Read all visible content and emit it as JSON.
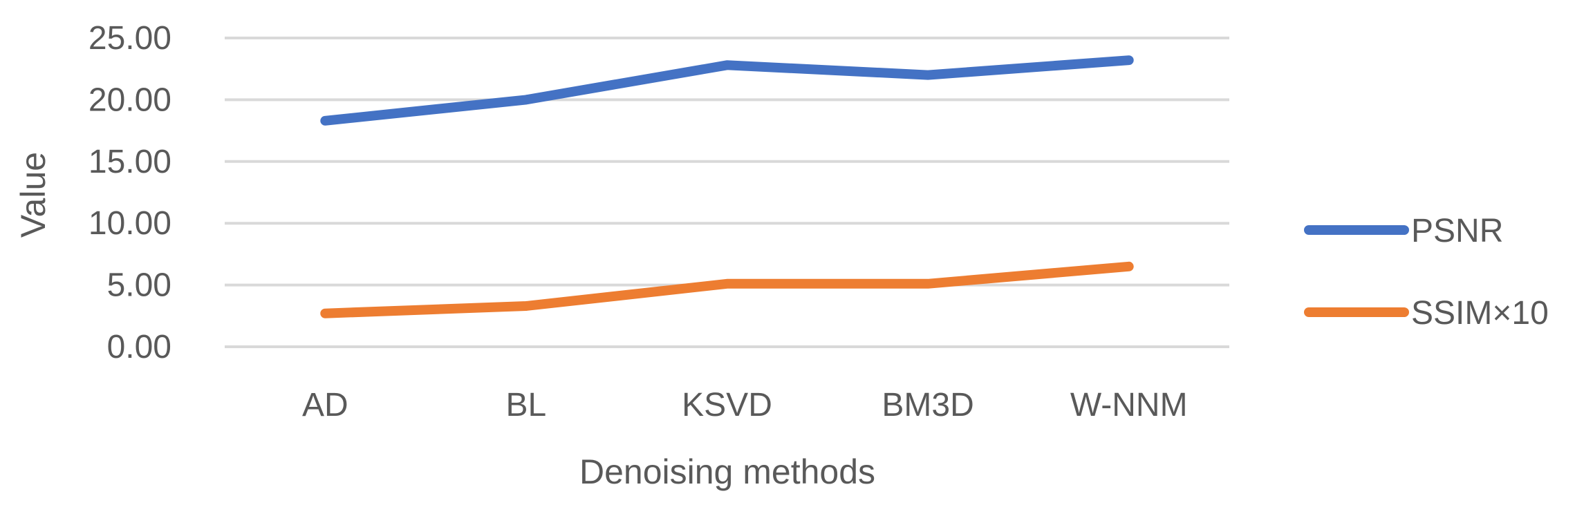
{
  "chart_data": {
    "type": "line",
    "title": "",
    "xlabel": "Denoising methods",
    "ylabel": "Value",
    "categories": [
      "AD",
      "BL",
      "KSVD",
      "BM3D",
      "W-NNM"
    ],
    "ylim": [
      0,
      25
    ],
    "yticks": [
      "0.00",
      "5.00",
      "10.00",
      "15.00",
      "20.00",
      "25.00"
    ],
    "grid": true,
    "legend_position": "right",
    "series": [
      {
        "name": "PSNR",
        "color": "#4472C4",
        "values": [
          18.3,
          20.0,
          22.8,
          22.0,
          23.2
        ]
      },
      {
        "name": "SSIM×10",
        "color": "#ED7D31",
        "values": [
          2.7,
          3.3,
          5.1,
          5.1,
          6.5
        ]
      }
    ]
  }
}
